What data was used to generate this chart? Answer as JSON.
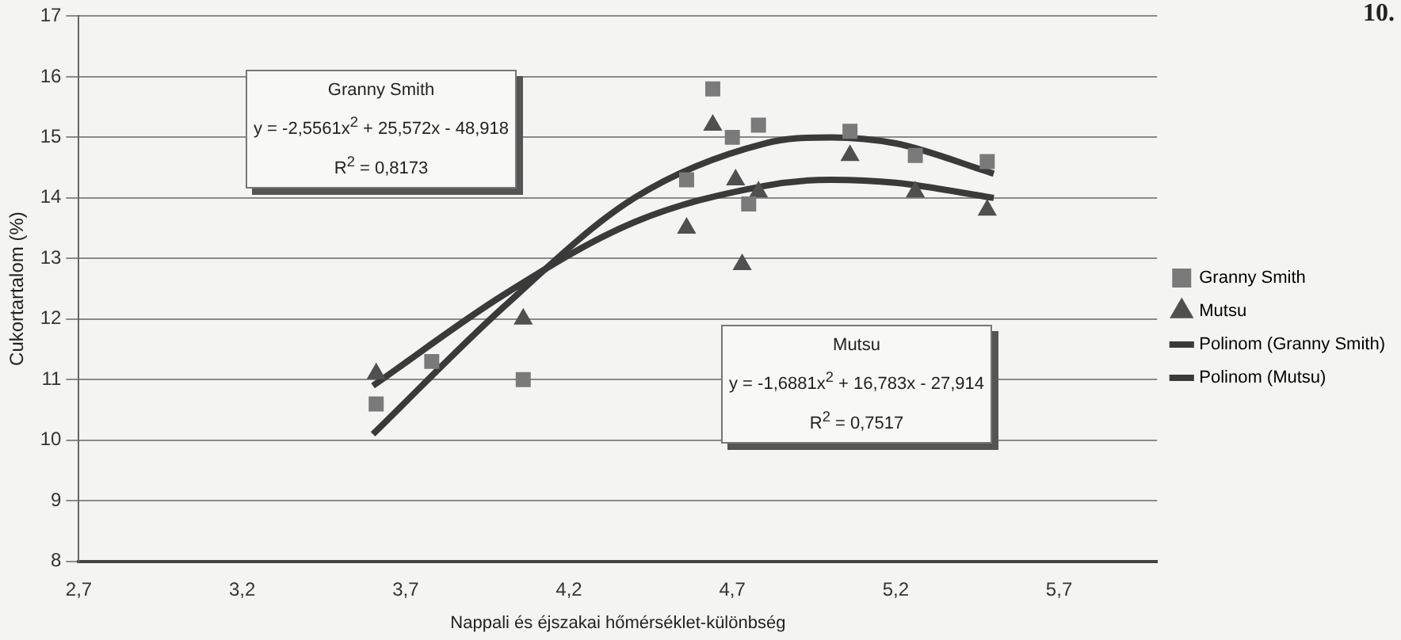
{
  "chart_data": {
    "type": "scatter",
    "xlabel": "Nappali és éjszakai hőmérséklet-különbség",
    "ylabel": "Cukortartalom (%)",
    "xlim": [
      2.7,
      6.0
    ],
    "xticks": [
      {
        "value": 2.7,
        "label": "2,7"
      },
      {
        "value": 3.2,
        "label": "3,2"
      },
      {
        "value": 3.7,
        "label": "3,7"
      },
      {
        "value": 4.2,
        "label": "4,2"
      },
      {
        "value": 4.7,
        "label": "4,7"
      },
      {
        "value": 5.2,
        "label": "5,2"
      },
      {
        "value": 5.7,
        "label": "5,7"
      }
    ],
    "ylim": [
      8,
      17
    ],
    "yticks": [
      8,
      9,
      10,
      11,
      12,
      13,
      14,
      15,
      16,
      17
    ],
    "grid": "y",
    "legend": "right",
    "series": [
      {
        "name": "Granny Smith",
        "marker": "square",
        "color": "#7a7a7a",
        "x": [
          3.61,
          3.78,
          4.06,
          4.56,
          4.64,
          4.7,
          4.75,
          4.78,
          5.06,
          5.26,
          5.48
        ],
        "values": [
          10.6,
          11.3,
          11.0,
          14.3,
          15.8,
          15.0,
          13.9,
          15.2,
          15.1,
          14.7,
          14.6
        ]
      },
      {
        "name": "Mutsu",
        "marker": "triangle",
        "color": "#505050",
        "x": [
          3.61,
          4.06,
          4.56,
          4.64,
          4.71,
          4.73,
          4.78,
          5.06,
          5.26,
          5.48
        ],
        "values": [
          11.1,
          12.0,
          13.5,
          15.2,
          14.3,
          12.9,
          14.1,
          14.7,
          14.1,
          13.8
        ]
      },
      {
        "name": "Polinom (Granny Smith)",
        "type": "line",
        "marker": "none",
        "color": "#3a3a3a",
        "x": [
          3.6,
          4.0,
          4.4,
          4.8,
          5.0,
          5.2,
          5.5
        ],
        "values": [
          10.1,
          12.2,
          14.0,
          14.9,
          15.0,
          14.9,
          14.4
        ]
      },
      {
        "name": "Polinom (Mutsu)",
        "type": "line",
        "marker": "none",
        "color": "#3a3a3a",
        "x": [
          3.6,
          4.0,
          4.4,
          4.8,
          5.0,
          5.2,
          5.5
        ],
        "values": [
          10.9,
          12.4,
          13.6,
          14.2,
          14.3,
          14.25,
          14.0
        ]
      }
    ],
    "annotations": [
      "Granny Smith\ny = -2,5561x$^{2}$ + 25,572x - 48,918\nR$^{2}$ = 0,8173",
      "Mutsu\ny = -1,6881x$^{2}$ + 16,783x - 27,914\nR$^{2}$ = 0,7517",
      "10."
    ]
  }
}
